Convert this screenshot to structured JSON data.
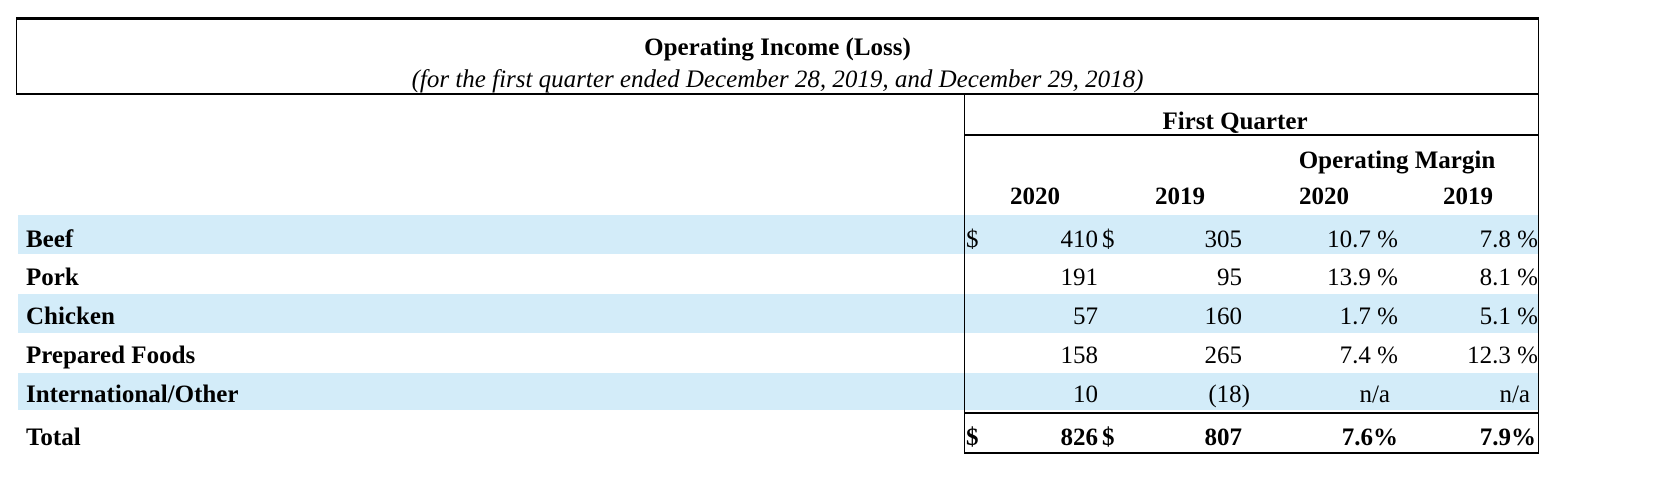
{
  "title": "Operating Income (Loss)",
  "subtitle": "(for the first quarter ended December 28, 2019, and December 29, 2018)",
  "header": {
    "group": "First Quarter",
    "margin_group": "Operating Margin",
    "columns": [
      "2020",
      "2019",
      "2020",
      "2019"
    ]
  },
  "rows": [
    {
      "label": "Beef",
      "c1_prefix": "$",
      "c1": "410",
      "c2_prefix": "$",
      "c2": "305",
      "c3": "10.7 %",
      "c4": "7.8 %"
    },
    {
      "label": "Pork",
      "c1_prefix": "",
      "c1": "191",
      "c2_prefix": "",
      "c2": "95",
      "c3": "13.9 %",
      "c4": "8.1 %"
    },
    {
      "label": "Chicken",
      "c1_prefix": "",
      "c1": "57",
      "c2_prefix": "",
      "c2": "160",
      "c3": "1.7 %",
      "c4": "5.1 %"
    },
    {
      "label": "Prepared Foods",
      "c1_prefix": "",
      "c1": "158",
      "c2_prefix": "",
      "c2": "265",
      "c3": "7.4 %",
      "c4": "12.3 %"
    },
    {
      "label": "International/Other",
      "c1_prefix": "",
      "c1": "10",
      "c2_prefix": "",
      "c2": "(18)",
      "c3": "n/a",
      "c4": "n/a"
    }
  ],
  "total": {
    "label": "Total",
    "c1_prefix": "$",
    "c1": "826",
    "c2_prefix": "$",
    "c2": "807",
    "c3": "7.6%",
    "c4": "7.9%"
  }
}
